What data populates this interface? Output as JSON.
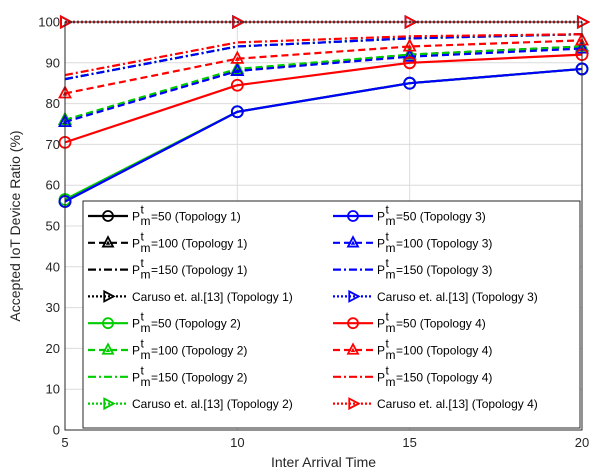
{
  "chart_data": {
    "type": "line",
    "title": "",
    "xlabel": "Inter Arrival Time",
    "ylabel": "Accepted IoT Device Ratio (%)",
    "x": [
      5,
      10,
      15,
      20
    ],
    "xlim": [
      5,
      20
    ],
    "ylim": [
      0,
      100
    ],
    "xticks": [
      5,
      10,
      15,
      20
    ],
    "yticks": [
      0,
      10,
      20,
      30,
      40,
      50,
      60,
      70,
      80,
      90,
      100
    ],
    "grid": true,
    "legend_placement": "bottom (inside plot, two columns)",
    "series": [
      {
        "name": "P_m^t=50 (Topology 1)",
        "base": "P",
        "sup": "t",
        "sub": "m",
        "tail": "=50 (Topology 1)",
        "color": "#000000",
        "dash": "solid",
        "marker": "circle",
        "values": [
          56,
          78,
          85,
          88.5
        ]
      },
      {
        "name": "P_m^t=100 (Topology 1)",
        "base": "P",
        "sup": "t",
        "sub": "m",
        "tail": "=100 (Topology 1)",
        "color": "#000000",
        "dash": "dashed",
        "marker": "triangle-up",
        "values": [
          76,
          88,
          92,
          94
        ]
      },
      {
        "name": "P_m^t=150 (Topology 1)",
        "base": "P",
        "sup": "t",
        "sub": "m",
        "tail": "=150 (Topology 1)",
        "color": "#000000",
        "dash": "dashdot",
        "marker": "none",
        "values": [
          86,
          94,
          96,
          97
        ]
      },
      {
        "name": "Caruso et. al.[13] (Topology 1)",
        "base": "Caruso et. al.[13] (Topology 1)",
        "sup": "",
        "sub": "",
        "tail": "",
        "color": "#000000",
        "dash": "dotted",
        "marker": "triangle-right",
        "values": [
          100,
          100,
          100,
          100
        ]
      },
      {
        "name": "P_m^t=50 (Topology 2)",
        "base": "P",
        "sup": "t",
        "sub": "m",
        "tail": "=50 (Topology 2)",
        "color": "#00cc00",
        "dash": "solid",
        "marker": "circle",
        "values": [
          56.5,
          78,
          85,
          88.5
        ]
      },
      {
        "name": "P_m^t=100 (Topology 2)",
        "base": "P",
        "sup": "t",
        "sub": "m",
        "tail": "=100 (Topology 2)",
        "color": "#00cc00",
        "dash": "dashed",
        "marker": "triangle-up",
        "values": [
          76,
          88.5,
          92,
          94
        ]
      },
      {
        "name": "P_m^t=150 (Topology 2)",
        "base": "P",
        "sup": "t",
        "sub": "m",
        "tail": "=150 (Topology 2)",
        "color": "#00cc00",
        "dash": "dashdot",
        "marker": "none",
        "values": [
          86,
          94,
          96,
          97
        ]
      },
      {
        "name": "Caruso et. al.[13] (Topology 2)",
        "base": "Caruso et. al.[13] (Topology 2)",
        "sup": "",
        "sub": "",
        "tail": "",
        "color": "#00cc00",
        "dash": "dotted",
        "marker": "triangle-right",
        "values": [
          100,
          100,
          100,
          100
        ]
      },
      {
        "name": "P_m^t=50 (Topology 3)",
        "base": "P",
        "sup": "t",
        "sub": "m",
        "tail": "=50 (Topology 3)",
        "color": "#0000ff",
        "dash": "solid",
        "marker": "circle",
        "values": [
          56,
          78,
          85,
          88.5
        ]
      },
      {
        "name": "P_m^t=100 (Topology 3)",
        "base": "P",
        "sup": "t",
        "sub": "m",
        "tail": "=100 (Topology 3)",
        "color": "#0000ff",
        "dash": "dashed",
        "marker": "triangle-up",
        "values": [
          75.5,
          88,
          91.5,
          93.5
        ]
      },
      {
        "name": "P_m^t=150 (Topology 3)",
        "base": "P",
        "sup": "t",
        "sub": "m",
        "tail": "=150 (Topology 3)",
        "color": "#0000ff",
        "dash": "dashdot",
        "marker": "none",
        "values": [
          86,
          94,
          96,
          97
        ]
      },
      {
        "name": "Caruso et. al.[13] (Topology 3)",
        "base": "Caruso et. al.[13] (Topology 3)",
        "sup": "",
        "sub": "",
        "tail": "",
        "color": "#0000ff",
        "dash": "dotted",
        "marker": "triangle-right",
        "values": [
          100,
          100,
          100,
          100
        ]
      },
      {
        "name": "P_m^t=50 (Topology 4)",
        "base": "P",
        "sup": "t",
        "sub": "m",
        "tail": "=50 (Topology 4)",
        "color": "#ff0000",
        "dash": "solid",
        "marker": "circle",
        "values": [
          70.5,
          84.5,
          90,
          92
        ]
      },
      {
        "name": "P_m^t=100 (Topology 4)",
        "base": "P",
        "sup": "t",
        "sub": "m",
        "tail": "=100 (Topology 4)",
        "color": "#ff0000",
        "dash": "dashed",
        "marker": "triangle-up",
        "values": [
          82.5,
          91,
          94,
          95.5
        ]
      },
      {
        "name": "P_m^t=150 (Topology 4)",
        "base": "P",
        "sup": "t",
        "sub": "m",
        "tail": "=150 (Topology 4)",
        "color": "#ff0000",
        "dash": "dashdot",
        "marker": "none",
        "values": [
          87,
          95,
          96.5,
          97
        ]
      },
      {
        "name": "Caruso et. al.[13] (Topology 4)",
        "base": "Caruso et. al.[13] (Topology 4)",
        "sup": "",
        "sub": "",
        "tail": "",
        "color": "#ff0000",
        "dash": "dotted",
        "marker": "triangle-right",
        "values": [
          100,
          100,
          100,
          100
        ]
      }
    ],
    "legend_order": [
      0,
      8,
      1,
      9,
      2,
      10,
      3,
      11,
      4,
      12,
      5,
      13,
      6,
      14,
      7,
      15
    ]
  }
}
